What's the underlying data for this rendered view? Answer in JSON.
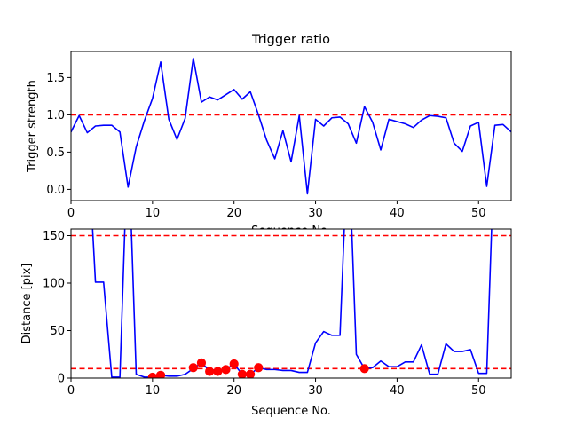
{
  "chart_data": [
    {
      "type": "line",
      "title": "Trigger ratio",
      "xlabel": "Sequence No.",
      "ylabel": "Trigger strength",
      "xlim": [
        0,
        54
      ],
      "ylim": [
        -0.15,
        1.85
      ],
      "xticks": [
        "0",
        "10",
        "20",
        "30",
        "40",
        "50"
      ],
      "yticks": [
        "0.0",
        "0.5",
        "1.0",
        "1.5"
      ],
      "grid": false,
      "series": [
        {
          "color": "#0000ff",
          "x": [
            0,
            1,
            2,
            3,
            4,
            5,
            6,
            7,
            8,
            9,
            10,
            11,
            12,
            13,
            14,
            15,
            16,
            17,
            18,
            19,
            20,
            21,
            22,
            23,
            24,
            25,
            26,
            27,
            28,
            29,
            30,
            31,
            32,
            33,
            34,
            35,
            36,
            37,
            38,
            39,
            40,
            41,
            42,
            43,
            44,
            45,
            46,
            47,
            48,
            49,
            50,
            51,
            52,
            53,
            54
          ],
          "y": [
            0.77,
            0.99,
            0.76,
            0.85,
            0.86,
            0.86,
            0.77,
            0.03,
            0.57,
            0.92,
            1.22,
            1.71,
            0.94,
            0.67,
            0.95,
            1.76,
            1.17,
            1.24,
            1.2,
            1.27,
            1.34,
            1.21,
            1.31,
            1.0,
            0.66,
            0.41,
            0.79,
            0.37,
            0.99,
            -0.06,
            0.94,
            0.85,
            0.96,
            0.97,
            0.88,
            0.62,
            1.11,
            0.9,
            0.53,
            0.94,
            0.91,
            0.88,
            0.83,
            0.93,
            0.99,
            0.98,
            0.96,
            0.62,
            0.51,
            0.85,
            0.9,
            0.04,
            0.86,
            0.87,
            0.77
          ]
        }
      ],
      "reference_line": {
        "y": 1.0,
        "color": "#ff0000",
        "style": "dashed"
      }
    },
    {
      "type": "line",
      "title": "",
      "xlabel": "Sequence No.",
      "ylabel": "Distance [pix]",
      "xlim": [
        0,
        54
      ],
      "ylim": [
        0,
        157
      ],
      "xticks": [
        "0",
        "10",
        "20",
        "30",
        "40",
        "50"
      ],
      "yticks": [
        "0",
        "50",
        "100",
        "150"
      ],
      "grid": false,
      "series": [
        {
          "color": "#0000ff",
          "x": [
            2,
            3,
            4,
            5,
            6,
            7,
            8,
            9,
            10,
            11,
            12,
            13,
            14,
            15,
            16,
            17,
            18,
            19,
            20,
            21,
            22,
            23,
            24,
            25,
            26,
            27,
            28,
            29,
            30,
            31,
            32,
            33,
            34,
            35,
            36,
            37,
            38,
            39,
            40,
            41,
            42,
            43,
            44,
            45,
            46,
            47,
            48,
            49,
            50,
            51,
            52
          ],
          "y": [
            260,
            101,
            101,
            1,
            1,
            260,
            4,
            1,
            1,
            3,
            2,
            2,
            4,
            10,
            16,
            8,
            9,
            9,
            15,
            4,
            4,
            11,
            9,
            9,
            8,
            8,
            6,
            6,
            37,
            49,
            45,
            45,
            260,
            25,
            10,
            11,
            18,
            12,
            12,
            17,
            17,
            35,
            4,
            4,
            36,
            28,
            28,
            30,
            5,
            5,
            260
          ]
        },
        {
          "color": "#ff0000",
          "marker": "circle",
          "x": [
            10,
            11,
            15,
            16,
            17,
            18,
            19,
            20,
            21,
            22,
            23,
            36
          ],
          "y": [
            1,
            3,
            11,
            16,
            7,
            7,
            9,
            15,
            4,
            4,
            11,
            10
          ]
        }
      ],
      "reference_lines": [
        {
          "y": 150,
          "color": "#ff0000",
          "style": "dashed"
        },
        {
          "y": 10,
          "color": "#ff0000",
          "style": "dashed"
        }
      ]
    }
  ]
}
